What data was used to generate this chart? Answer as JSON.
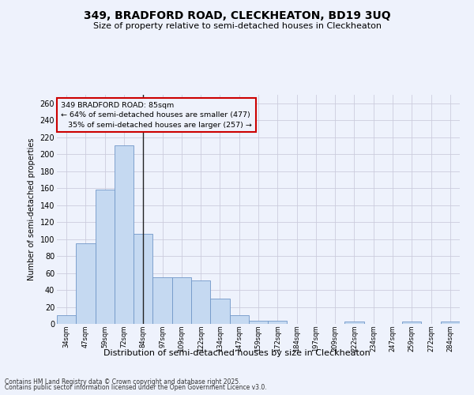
{
  "title": "349, BRADFORD ROAD, CLECKHEATON, BD19 3UQ",
  "subtitle": "Size of property relative to semi-detached houses in Cleckheaton",
  "xlabel": "Distribution of semi-detached houses by size in Cleckheaton",
  "ylabel": "Number of semi-detached properties",
  "categories": [
    "34sqm",
    "47sqm",
    "59sqm",
    "72sqm",
    "84sqm",
    "97sqm",
    "109sqm",
    "122sqm",
    "134sqm",
    "147sqm",
    "159sqm",
    "172sqm",
    "184sqm",
    "197sqm",
    "209sqm",
    "222sqm",
    "234sqm",
    "247sqm",
    "259sqm",
    "272sqm",
    "284sqm"
  ],
  "values": [
    10,
    95,
    158,
    210,
    106,
    55,
    55,
    51,
    30,
    10,
    4,
    4,
    0,
    0,
    0,
    3,
    0,
    0,
    3,
    0,
    3
  ],
  "bar_color": "#c5d9f1",
  "bar_edge_color": "#7097c8",
  "property_index": 4,
  "property_label": "349 BRADFORD ROAD: 85sqm",
  "pct_smaller": 64,
  "n_smaller": 477,
  "pct_larger": 35,
  "n_larger": 257,
  "vline_color": "#222222",
  "annotation_box_color": "#cc0000",
  "ylim": [
    0,
    270
  ],
  "yticks": [
    0,
    20,
    40,
    60,
    80,
    100,
    120,
    140,
    160,
    180,
    200,
    220,
    240,
    260
  ],
  "grid_color": "#ccccdd",
  "background_color": "#eef2fc",
  "footer1": "Contains HM Land Registry data © Crown copyright and database right 2025.",
  "footer2": "Contains public sector information licensed under the Open Government Licence v3.0."
}
